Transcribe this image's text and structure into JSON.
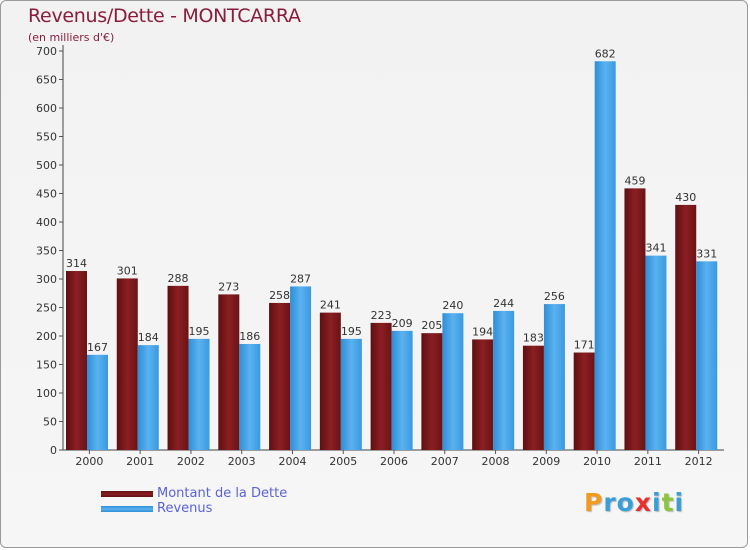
{
  "chart_data": {
    "type": "bar",
    "title": "Revenus/Dette - MONTCARRA",
    "subtitle": "(en milliers d'€)",
    "categories": [
      "2000",
      "2001",
      "2002",
      "2003",
      "2004",
      "2005",
      "2006",
      "2007",
      "2008",
      "2009",
      "2010",
      "2011",
      "2012"
    ],
    "series": [
      {
        "name": "Montant de la Dette",
        "color": "#7a1518",
        "values": [
          314,
          301,
          288,
          273,
          258,
          241,
          223,
          205,
          194,
          183,
          171,
          459,
          430
        ]
      },
      {
        "name": "Revenus",
        "color": "#3d9ee6",
        "values": [
          167,
          184,
          195,
          186,
          287,
          195,
          209,
          240,
          244,
          256,
          682,
          341,
          331
        ]
      }
    ],
    "ylim": [
      0,
      700
    ],
    "yticks": [
      0,
      50,
      100,
      150,
      200,
      250,
      300,
      350,
      400,
      450,
      500,
      550,
      600,
      650,
      700
    ],
    "grid": "none",
    "legend_position": "bottom-left"
  },
  "brand": {
    "letters": [
      {
        "char": "P",
        "color": "#f39a1e"
      },
      {
        "char": "r",
        "color": "#3a9fd8"
      },
      {
        "char": "o",
        "color": "#3a9fd8"
      },
      {
        "char": "x",
        "color": "#e53131"
      },
      {
        "char": "i",
        "color": "#3a9fd8"
      },
      {
        "char": "t",
        "color": "#8cc63f"
      },
      {
        "char": "i",
        "color": "#3a9fd8"
      }
    ]
  }
}
